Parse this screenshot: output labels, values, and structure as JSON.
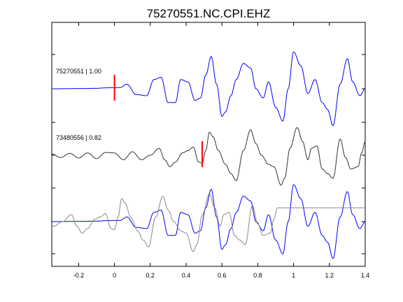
{
  "chart_data": {
    "type": "line",
    "title": "75270551.NC.CPI.EHZ",
    "xlabel": "",
    "ylabel": "",
    "xlim": [
      -0.35,
      1.4
    ],
    "x_ticks": [
      "-0.2",
      "0",
      "0.2",
      "0.4",
      "0.6",
      "0.8",
      "1",
      "1.2",
      "1.4"
    ],
    "x_tick_values": [
      -0.2,
      0,
      0.2,
      0.4,
      0.6,
      0.8,
      1.0,
      1.2,
      1.4
    ],
    "grid": false,
    "traces": [
      {
        "label": "75270551 | 1.00",
        "color": "#0000ff",
        "pick_time": 0.0,
        "pick_color": "#ff0000",
        "x": [
          -0.35,
          -0.2,
          -0.1,
          -0.05,
          0.0,
          0.03,
          0.07,
          0.12,
          0.18,
          0.22,
          0.26,
          0.3,
          0.34,
          0.37,
          0.41,
          0.45,
          0.48,
          0.51,
          0.54,
          0.57,
          0.6,
          0.62,
          0.65,
          0.68,
          0.72,
          0.76,
          0.79,
          0.83,
          0.86,
          0.9,
          0.94,
          0.97,
          1.0,
          1.04,
          1.08,
          1.12,
          1.16,
          1.19,
          1.22,
          1.26,
          1.3,
          1.33,
          1.37,
          1.4
        ],
        "y": [
          0.0,
          0.01,
          0.02,
          0.04,
          0.05,
          0.05,
          0.2,
          -0.25,
          -0.3,
          0.4,
          0.5,
          -0.6,
          -0.6,
          0.4,
          0.3,
          -0.5,
          -0.4,
          0.6,
          1.4,
          0.2,
          -1.2,
          -1.0,
          -0.3,
          0.4,
          1.1,
          0.9,
          0.0,
          -0.4,
          0.3,
          -0.8,
          -1.4,
          0.0,
          1.6,
          1.0,
          -0.2,
          0.4,
          -0.6,
          -0.9,
          -1.6,
          0.2,
          1.3,
          0.3,
          -0.3,
          0.0
        ]
      },
      {
        "label": "73480556 | 0.82",
        "color": "#333333",
        "pick_time": 0.49,
        "pick_color": "#ff0000",
        "x": [
          -0.35,
          -0.3,
          -0.25,
          -0.2,
          -0.15,
          -0.1,
          -0.05,
          0.0,
          0.05,
          0.1,
          0.15,
          0.2,
          0.25,
          0.28,
          0.31,
          0.34,
          0.38,
          0.41,
          0.44,
          0.47,
          0.49,
          0.51,
          0.53,
          0.55,
          0.58,
          0.62,
          0.65,
          0.68,
          0.72,
          0.76,
          0.79,
          0.82,
          0.86,
          0.89,
          0.93,
          0.95,
          0.98,
          1.02,
          1.05,
          1.08,
          1.1,
          1.13,
          1.16,
          1.19,
          1.22,
          1.26,
          1.29,
          1.32,
          1.36,
          1.38,
          1.4
        ],
        "y": [
          0.05,
          -0.1,
          0.08,
          -0.12,
          0.1,
          -0.15,
          0.12,
          0.1,
          -0.2,
          0.15,
          -0.2,
          0.0,
          0.3,
          -0.2,
          -0.5,
          -0.3,
          0.1,
          0.2,
          0.35,
          -0.3,
          -0.35,
          0.2,
          1.0,
          0.8,
          0.2,
          -0.4,
          -0.8,
          -1.1,
          0.2,
          1.1,
          0.5,
          0.0,
          -0.4,
          -0.5,
          -1.3,
          -1.0,
          0.3,
          1.2,
          0.6,
          -0.2,
          0.3,
          0.4,
          -0.6,
          -0.8,
          -1.0,
          0.7,
          -0.1,
          -0.6,
          -0.5,
          0.1,
          0.6
        ]
      }
    ],
    "overlay": {
      "series": [
        {
          "color": "#0000ff",
          "ref": 0
        },
        {
          "color": "#888888",
          "ref": 1,
          "shift": -0.49
        }
      ]
    }
  }
}
